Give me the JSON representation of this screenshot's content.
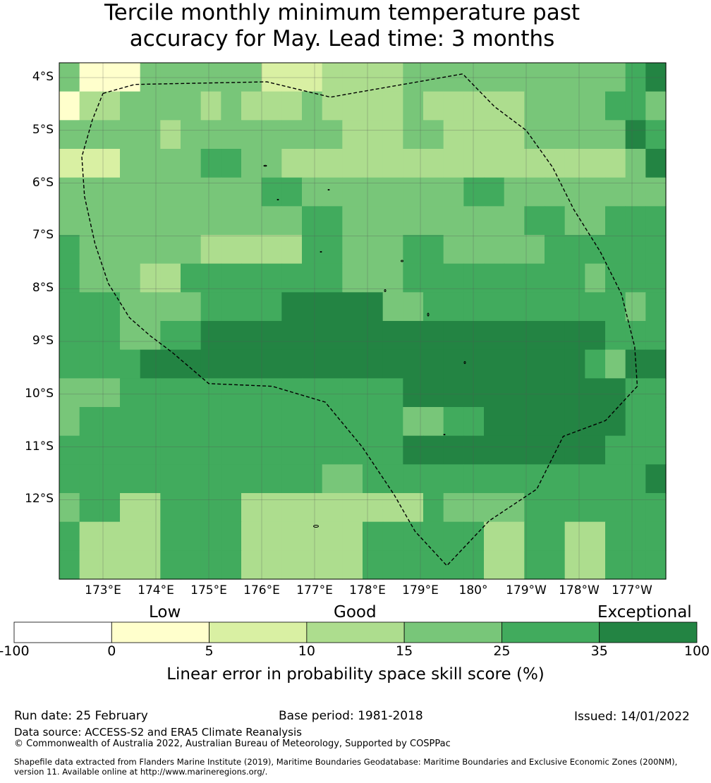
{
  "title": {
    "line1": "Tercile monthly minimum temperature past",
    "line2": "accuracy for May. Lead time: 3 months"
  },
  "map": {
    "lat_labels": [
      "4°S",
      "5°S",
      "6°S",
      "7°S",
      "8°S",
      "9°S",
      "10°S",
      "11°S",
      "12°S"
    ],
    "lon_labels": [
      "173°E",
      "174°E",
      "175°E",
      "176°E",
      "177°E",
      "178°E",
      "179°E",
      "180°",
      "179°W",
      "178°W",
      "177°W"
    ],
    "palette": [
      "#ffffcc",
      "#d9f0a3",
      "#addd8e",
      "#78c679",
      "#41ab5d",
      "#238443"
    ],
    "grid_color": "#555555",
    "boundary_color": "#000000",
    "skill_classes": [
      [
        4,
        1,
        1,
        1,
        4,
        4,
        4,
        4,
        4,
        4,
        2,
        2,
        2,
        3,
        3,
        3,
        3,
        4,
        4,
        4,
        4,
        4,
        4,
        4,
        4,
        4,
        4,
        4
      ],
      [
        1,
        3,
        3,
        4,
        4,
        4,
        4,
        4,
        4,
        4,
        4,
        4,
        4,
        3,
        3,
        3,
        3,
        3,
        3,
        3,
        3,
        3,
        4,
        4,
        4,
        5,
        5,
        5,
        5,
        4
      ],
      [
        1,
        3,
        3,
        4,
        3,
        3,
        4,
        4,
        4,
        4,
        4,
        4,
        4,
        4,
        3,
        3,
        3,
        4,
        4,
        3,
        3,
        3,
        3,
        4,
        4,
        4,
        4,
        4,
        5,
        5
      ],
      [
        2,
        2,
        2,
        4,
        4,
        4,
        4,
        5,
        5,
        4,
        4,
        4,
        4,
        4,
        4,
        4,
        4,
        3,
        3,
        3,
        3,
        4,
        4,
        4,
        4,
        4,
        4,
        4,
        4,
        6
      ],
      [
        4,
        4,
        4,
        4,
        4,
        4,
        4,
        4,
        4,
        4,
        5,
        5,
        4,
        4,
        4,
        4,
        4,
        4,
        4,
        4,
        5,
        5,
        4,
        4,
        4,
        4,
        4,
        4,
        4,
        4
      ],
      [
        4,
        4,
        4,
        4,
        4,
        4,
        4,
        4,
        4,
        4,
        4,
        4,
        5,
        5,
        4,
        4,
        4,
        4,
        4,
        4,
        4,
        4,
        4,
        5,
        5,
        4,
        4,
        5,
        5,
        5
      ],
      [
        5,
        4,
        4,
        4,
        4,
        4,
        4,
        4,
        4,
        4,
        4,
        4,
        5,
        5,
        4,
        4,
        4,
        4,
        4,
        4,
        4,
        4,
        4,
        4,
        5,
        5,
        5,
        5,
        5,
        5
      ],
      [
        5,
        4,
        4,
        4,
        4,
        5,
        5,
        5,
        5,
        5,
        5,
        5,
        5,
        5,
        4,
        4,
        4,
        4,
        5,
        5,
        5,
        5,
        5,
        5,
        5,
        5,
        5,
        5,
        5,
        5
      ],
      [
        5,
        5,
        5,
        4,
        4,
        5,
        5,
        5,
        5,
        5,
        5,
        5,
        5,
        5,
        4,
        4,
        4,
        4,
        5,
        5,
        5,
        5,
        5,
        5,
        5,
        5,
        5,
        5,
        4,
        5
      ],
      [
        5,
        5,
        5,
        4,
        4,
        5,
        5,
        5,
        5,
        5,
        5,
        5,
        5,
        5,
        5,
        5,
        5,
        6,
        6,
        5,
        5,
        5,
        5,
        5,
        5,
        5,
        5,
        5,
        4,
        5
      ],
      [
        5,
        5,
        5,
        5,
        5,
        5,
        5,
        4,
        4,
        5,
        5,
        5,
        5,
        5,
        5,
        5,
        5,
        6,
        6,
        5,
        5,
        5,
        5,
        5,
        5,
        5,
        5,
        4,
        4,
        5
      ],
      [
        5,
        5,
        5,
        5,
        5,
        4,
        4,
        5,
        5,
        5,
        5,
        5,
        5,
        5,
        5,
        5,
        5,
        5,
        5,
        5,
        5,
        5,
        5,
        5,
        5,
        5,
        5,
        5,
        5,
        5
      ],
      [
        5,
        5,
        5,
        5,
        5,
        5,
        5,
        5,
        5,
        5,
        5,
        5,
        5,
        5,
        5,
        5,
        5,
        5,
        5,
        5,
        5,
        5,
        5,
        5,
        5,
        5,
        5,
        5,
        5,
        5
      ],
      [
        5,
        5,
        5,
        5,
        5,
        5,
        5,
        5,
        5,
        5,
        5,
        5,
        5,
        5,
        5,
        5,
        5,
        5,
        5,
        5,
        5,
        5,
        5,
        5,
        5,
        5,
        5,
        5,
        5,
        5
      ],
      [
        5,
        5,
        5,
        5,
        5,
        5,
        5,
        5,
        5,
        5,
        5,
        5,
        5,
        5,
        5,
        5,
        5,
        5,
        5,
        5,
        5,
        5,
        5,
        5,
        5,
        5,
        5,
        5,
        5,
        5
      ],
      [
        5,
        5,
        5,
        5,
        5,
        5,
        5,
        5,
        5,
        5,
        5,
        5,
        5,
        5,
        5,
        5,
        5,
        5,
        5,
        5,
        5,
        5,
        5,
        5,
        5,
        5,
        5,
        5,
        5,
        5
      ],
      [
        5,
        5,
        5,
        5,
        5,
        5,
        5,
        5,
        5,
        5,
        5,
        5,
        5,
        5,
        5,
        5,
        5,
        5,
        5,
        5,
        5,
        5,
        5,
        5,
        5,
        5,
        5,
        5,
        5,
        5
      ],
      [
        5,
        5,
        5,
        5,
        5,
        5,
        5,
        5,
        5,
        5,
        5,
        5,
        5,
        5,
        5,
        5,
        5,
        5,
        5,
        5,
        5,
        5,
        5,
        5,
        5,
        5,
        5,
        5,
        5,
        5
      ]
    ],
    "skill_overrides": [
      [
        2,
        1,
        2,
        1
      ],
      [
        3,
        1,
        2,
        1
      ],
      [
        4,
        1,
        1,
        1
      ],
      [
        0,
        2,
        2,
        2
      ],
      [
        1,
        3,
        2,
        2
      ],
      [
        0,
        4,
        2,
        2
      ],
      [
        9,
        12,
        2,
        1
      ],
      [
        15,
        17,
        1,
        1
      ],
      [
        20,
        22,
        1,
        1
      ],
      [
        5,
        7,
        1,
        1
      ],
      [
        9,
        11,
        1,
        1
      ],
      [
        4,
        6,
        1,
        1
      ],
      [
        17,
        17,
        1,
        1
      ],
      [
        11,
        17,
        3,
        3
      ],
      [
        18,
        19,
        3,
        3
      ],
      [
        20,
        23,
        3,
        3
      ],
      [
        24,
        24,
        3,
        3
      ],
      [
        25,
        26,
        3,
        3
      ],
      [
        27,
        27,
        3,
        3
      ],
      [
        24,
        26,
        1,
        1
      ],
      [
        29,
        29,
        0,
        0
      ],
      [
        28,
        28,
        2,
        2
      ],
      [
        17,
        18,
        6,
        6
      ],
      [
        17,
        18,
        7,
        7
      ],
      [
        6,
        6,
        8,
        8
      ],
      [
        25,
        25,
        7,
        7
      ],
      [
        26,
        26,
        7,
        7
      ],
      [
        11,
        15,
        8,
        11
      ],
      [
        18,
        20,
        10,
        10
      ],
      [
        21,
        23,
        11,
        11
      ],
      [
        24,
        25,
        11,
        11
      ],
      [
        26,
        26,
        12,
        12
      ],
      [
        27,
        27,
        11,
        11
      ],
      [
        7,
        8,
        6,
        6
      ],
      [
        9,
        11,
        6,
        6
      ],
      [
        4,
        5,
        7,
        7
      ],
      [
        5,
        5,
        8,
        8
      ],
      [
        7,
        12,
        9,
        9
      ],
      [
        13,
        16,
        9,
        9
      ],
      [
        17,
        18,
        9,
        9
      ],
      [
        19,
        21,
        9,
        9
      ],
      [
        22,
        26,
        9,
        9
      ],
      [
        27,
        29,
        9,
        9
      ],
      [
        4,
        6,
        10,
        10
      ],
      [
        7,
        9,
        10,
        10
      ],
      [
        10,
        12,
        10,
        10
      ],
      [
        13,
        16,
        10,
        10
      ],
      [
        17,
        18,
        10,
        10
      ],
      [
        19,
        21,
        10,
        10
      ],
      [
        22,
        25,
        10,
        10
      ],
      [
        28,
        28,
        10,
        10
      ],
      [
        29,
        29,
        10,
        10
      ],
      [
        1,
        2,
        11,
        11
      ],
      [
        0,
        0,
        11,
        11
      ],
      [
        4,
        5,
        11,
        11
      ],
      [
        6,
        8,
        11,
        11
      ],
      [
        9,
        9,
        11,
        11
      ],
      [
        10,
        12,
        11,
        11
      ],
      [
        13,
        16,
        11,
        11
      ],
      [
        17,
        18,
        11,
        11
      ],
      [
        19,
        21,
        11,
        11
      ],
      [
        22,
        24,
        11,
        11
      ],
      [
        25,
        27,
        11,
        11
      ],
      [
        0,
        0,
        12,
        12
      ],
      [
        17,
        18,
        12,
        12
      ],
      [
        20,
        20,
        12,
        12
      ],
      [
        21,
        24,
        12,
        12
      ],
      [
        25,
        27,
        12,
        12
      ],
      [
        17,
        19,
        13,
        13
      ],
      [
        20,
        22,
        13,
        13
      ],
      [
        23,
        26,
        13,
        13
      ],
      [
        13,
        14,
        14,
        14
      ],
      [
        29,
        29,
        14,
        14
      ],
      [
        0,
        0,
        15,
        15
      ],
      [
        1,
        2,
        15,
        15
      ],
      [
        3,
        4,
        15,
        15
      ],
      [
        9,
        13,
        15,
        15
      ],
      [
        14,
        17,
        15,
        15
      ],
      [
        19,
        20,
        15,
        15
      ],
      [
        21,
        22,
        15,
        15
      ],
      [
        1,
        4,
        16,
        16
      ],
      [
        9,
        12,
        16,
        16
      ],
      [
        13,
        14,
        16,
        16
      ],
      [
        21,
        22,
        16,
        16
      ],
      [
        25,
        26,
        16,
        16
      ],
      [
        1,
        4,
        17,
        17
      ],
      [
        9,
        12,
        17,
        17
      ],
      [
        13,
        14,
        17,
        17
      ],
      [
        21,
        22,
        17,
        17
      ],
      [
        25,
        26,
        17,
        17
      ]
    ],
    "skill_override_classes": [
      3,
      3,
      3,
      4,
      4,
      4,
      3,
      3,
      3,
      3,
      3,
      4,
      4,
      3,
      3,
      3,
      3,
      3,
      3,
      4,
      6,
      6,
      5,
      5,
      4,
      5,
      4,
      6,
      6,
      6,
      6,
      6,
      6,
      3,
      3,
      3,
      4,
      6,
      6,
      6,
      6,
      6,
      5,
      6,
      6,
      6,
      6,
      6,
      6,
      6,
      6,
      6,
      4,
      4,
      5,
      5,
      5,
      5,
      5,
      6,
      6,
      6,
      6,
      4,
      4,
      5,
      6,
      6,
      6,
      6,
      6,
      4,
      6,
      4,
      5,
      3,
      3,
      3,
      4,
      4,
      3,
      3,
      3,
      3,
      3,
      3,
      3,
      3,
      3,
      3
    ],
    "boundary_points": [
      [
        173.0,
        -4.3
      ],
      [
        173.6,
        -4.13
      ],
      [
        176.1,
        -4.08
      ],
      [
        177.3,
        -4.37
      ],
      [
        179.8,
        -3.93
      ],
      [
        -179.6,
        -4.55
      ],
      [
        -179.0,
        -5.0
      ],
      [
        -178.5,
        -5.7
      ],
      [
        -178.1,
        -6.5
      ],
      [
        -177.6,
        -7.3
      ],
      [
        -177.2,
        -8.1
      ],
      [
        -176.95,
        -9.1
      ],
      [
        -176.9,
        -9.85
      ],
      [
        -177.5,
        -10.5
      ],
      [
        -178.3,
        -10.8
      ],
      [
        -178.8,
        -11.8
      ],
      [
        -179.7,
        -12.4
      ],
      [
        179.5,
        -13.25
      ],
      [
        178.9,
        -12.6
      ],
      [
        178.5,
        -11.9
      ],
      [
        177.9,
        -11.0
      ],
      [
        177.2,
        -10.15
      ],
      [
        176.2,
        -9.85
      ],
      [
        175.0,
        -9.8
      ],
      [
        174.3,
        -9.2
      ],
      [
        173.9,
        -8.9
      ],
      [
        173.5,
        -8.55
      ],
      [
        173.1,
        -7.9
      ],
      [
        172.85,
        -7.15
      ],
      [
        172.65,
        -6.25
      ],
      [
        172.6,
        -5.5
      ],
      [
        172.8,
        -4.8
      ],
      [
        173.0,
        -4.3
      ]
    ]
  },
  "colorbar": {
    "categories": [
      "Low",
      "Good",
      "Exceptional"
    ],
    "ticks": [
      "-100",
      "0",
      "5",
      "10",
      "15",
      "25",
      "35",
      "100"
    ],
    "colors": [
      "#ffffff",
      "#ffffcc",
      "#d9f0a3",
      "#addd8e",
      "#78c679",
      "#41ab5d",
      "#238443"
    ],
    "title": "Linear error in probability space skill score (%)"
  },
  "footer": {
    "run_date": "Run date: 25 February",
    "base_period": "Base period: 1981-2018",
    "issued": "Issued: 14/01/2022",
    "data_source": "Data source: ACCESS-S2 and ERA5 Climate Reanalysis",
    "copyright": "© Commonwealth of Australia 2022, Australian Bureau of Meteorology, Supported by COSPPac",
    "shapefile_line1": "Shapefile data extracted from Flanders Marine Institute (2019), Maritime Boundaries Geodatabase: Maritime Boundaries and Exclusive Economic Zones (200NM),",
    "shapefile_line2": "version 11. Available online at http://www.marineregions.org/."
  }
}
